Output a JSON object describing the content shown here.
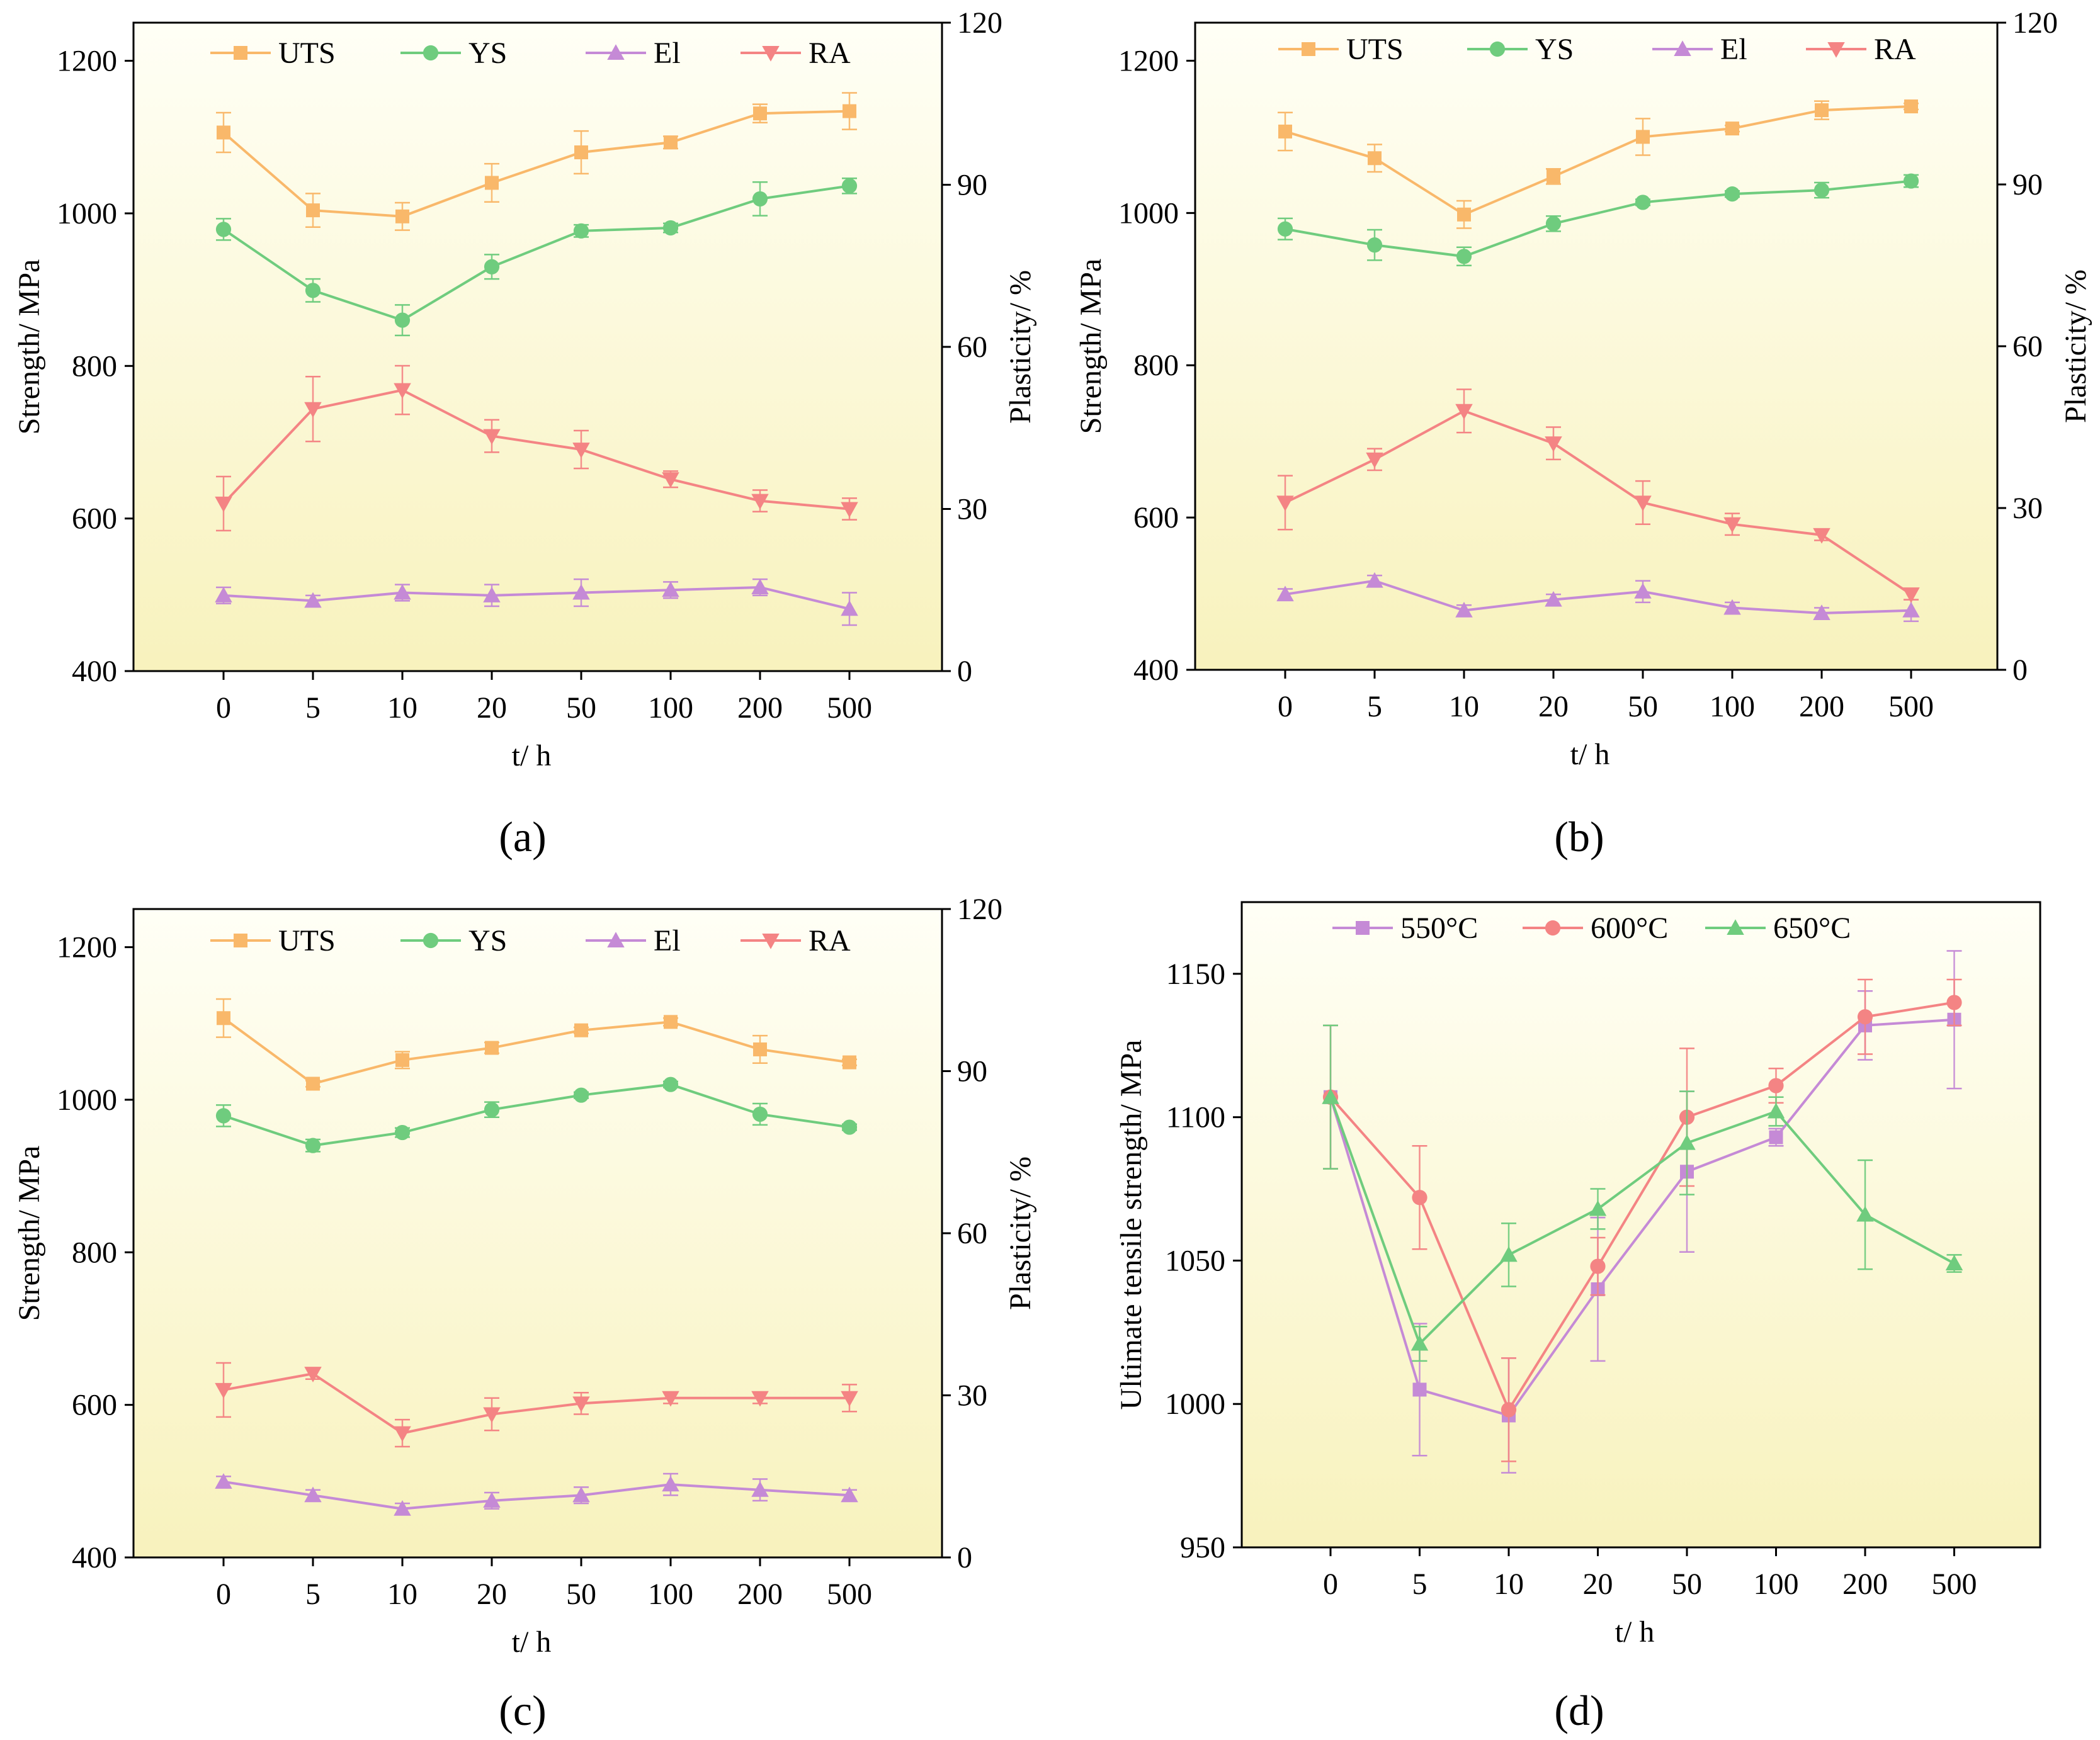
{
  "chart_data": [
    {
      "type": "line",
      "panel_label": "(a)",
      "x_categories": [
        "0",
        "5",
        "10",
        "20",
        "50",
        "100",
        "200",
        "500"
      ],
      "xlabel": "t/ h",
      "ylabel_left": "Strength/ MPa",
      "ylabel_right": "Plasticity/ %",
      "ylim_left": [
        400,
        1250
      ],
      "yticks_left": [
        "400",
        "600",
        "800",
        "1000",
        "1200"
      ],
      "ylim_right": [
        0,
        120
      ],
      "yticks_right": [
        "0",
        "30",
        "60",
        "90",
        "120"
      ],
      "legend_position": "top",
      "series": [
        {
          "name": "UTS",
          "axis": "left",
          "marker": "square",
          "color": "#f9b86a",
          "values": [
            1106,
            1004,
            996,
            1040,
            1080,
            1093,
            1131,
            1134
          ],
          "errors": [
            26,
            22,
            18,
            25,
            28,
            8,
            12,
            24
          ]
        },
        {
          "name": "YS",
          "axis": "left",
          "marker": "circle",
          "color": "#6fcc7e",
          "values": [
            979,
            899,
            860,
            930,
            977,
            981,
            1019,
            1036
          ],
          "errors": [
            14,
            15,
            20,
            16,
            8,
            6,
            22,
            10
          ]
        },
        {
          "name": "El",
          "axis": "right",
          "marker": "triangle-up",
          "color": "#c58ad6",
          "values": [
            14,
            13,
            14.5,
            14,
            14.5,
            15,
            15.5,
            11.5
          ],
          "errors": [
            1.5,
            1,
            1.5,
            2,
            2.5,
            1.5,
            1.5,
            3
          ]
        },
        {
          "name": "RA",
          "axis": "right",
          "marker": "triangle-down",
          "color": "#f48484",
          "values": [
            31,
            48.5,
            52,
            43.5,
            41,
            35.5,
            31.5,
            30
          ],
          "errors": [
            5,
            6,
            4.5,
            3,
            3.5,
            1.5,
            2,
            2
          ]
        }
      ]
    },
    {
      "type": "line",
      "panel_label": "(b)",
      "x_categories": [
        "0",
        "5",
        "10",
        "20",
        "50",
        "100",
        "200",
        "500"
      ],
      "xlabel": "t/ h",
      "ylabel_left": "Strength/ MPa",
      "ylabel_right": "Plasticity/ %",
      "ylim_left": [
        400,
        1250
      ],
      "yticks_left": [
        "400",
        "600",
        "800",
        "1000",
        "1200"
      ],
      "ylim_right": [
        0,
        120
      ],
      "yticks_right": [
        "0",
        "30",
        "60",
        "90",
        "120"
      ],
      "legend_position": "top",
      "series": [
        {
          "name": "UTS",
          "axis": "left",
          "marker": "square",
          "color": "#f9b86a",
          "values": [
            1107,
            1072,
            998,
            1048,
            1100,
            1111,
            1135,
            1140
          ],
          "errors": [
            25,
            18,
            18,
            10,
            24,
            4,
            12,
            4
          ]
        },
        {
          "name": "YS",
          "axis": "left",
          "marker": "circle",
          "color": "#6fcc7e",
          "values": [
            979,
            958,
            943,
            986,
            1014,
            1025,
            1030,
            1042
          ],
          "errors": [
            14,
            20,
            12,
            10,
            4,
            4,
            10,
            8
          ]
        },
        {
          "name": "El",
          "axis": "right",
          "marker": "triangle-up",
          "color": "#c58ad6",
          "values": [
            14,
            16.5,
            11,
            13,
            14.5,
            11.5,
            10.5,
            11
          ],
          "errors": [
            1,
            1,
            1,
            1,
            2,
            1,
            1,
            2
          ]
        },
        {
          "name": "RA",
          "axis": "right",
          "marker": "triangle-down",
          "color": "#f48484",
          "values": [
            31,
            39,
            48,
            42,
            31,
            27,
            25,
            14
          ],
          "errors": [
            5,
            2,
            4,
            3,
            4,
            2,
            1,
            1
          ]
        }
      ]
    },
    {
      "type": "line",
      "panel_label": "(c)",
      "x_categories": [
        "0",
        "5",
        "10",
        "20",
        "50",
        "100",
        "200",
        "500"
      ],
      "xlabel": "t/ h",
      "ylabel_left": "Strength/ MPa",
      "ylabel_right": "Plasticity/ %",
      "ylim_left": [
        400,
        1250
      ],
      "yticks_left": [
        "400",
        "600",
        "800",
        "1000",
        "1200"
      ],
      "ylim_right": [
        0,
        120
      ],
      "yticks_right": [
        "0",
        "30",
        "60",
        "90",
        "120"
      ],
      "legend_position": "top",
      "series": [
        {
          "name": "UTS",
          "axis": "left",
          "marker": "square",
          "color": "#f9b86a",
          "values": [
            1107,
            1021,
            1052,
            1068,
            1091,
            1102,
            1066,
            1049
          ],
          "errors": [
            25,
            4,
            11,
            7,
            4,
            5,
            18,
            4
          ]
        },
        {
          "name": "YS",
          "axis": "left",
          "marker": "circle",
          "color": "#6fcc7e",
          "values": [
            979,
            940,
            957,
            987,
            1006,
            1020,
            981,
            964
          ],
          "errors": [
            14,
            8,
            6,
            10,
            4,
            4,
            14,
            4
          ]
        },
        {
          "name": "El",
          "axis": "right",
          "marker": "triangle-up",
          "color": "#c58ad6",
          "values": [
            14,
            11.5,
            9,
            10.5,
            11.5,
            13.5,
            12.5,
            11.5
          ],
          "errors": [
            1,
            1,
            1,
            1.5,
            1.5,
            2,
            2,
            1
          ]
        },
        {
          "name": "RA",
          "axis": "right",
          "marker": "triangle-down",
          "color": "#f48484",
          "values": [
            31,
            34,
            23,
            26.5,
            28.5,
            29.5,
            29.5,
            29.5
          ],
          "errors": [
            5,
            1,
            2.5,
            3,
            2,
            1,
            1,
            2.5
          ]
        }
      ]
    },
    {
      "type": "line",
      "panel_label": "(d)",
      "x_categories": [
        "0",
        "5",
        "10",
        "20",
        "50",
        "100",
        "200",
        "500"
      ],
      "xlabel": "t/ h",
      "ylabel": "Ultimate tensile strength/ MPa",
      "ylim": [
        950,
        1175
      ],
      "yticks": [
        "950",
        "1000",
        "1050",
        "1100",
        "1150"
      ],
      "legend_position": "top",
      "series": [
        {
          "name": "550°C",
          "marker": "square",
          "color": "#c58ad6",
          "values": [
            1107,
            1005,
            996,
            1040,
            1081,
            1093,
            1132,
            1134
          ],
          "errors": [
            25,
            23,
            20,
            25,
            28,
            3,
            12,
            24
          ]
        },
        {
          "name": "600°C",
          "marker": "circle",
          "color": "#f48484",
          "values": [
            1107,
            1072,
            998,
            1048,
            1100,
            1111,
            1135,
            1140
          ],
          "errors": [
            25,
            18,
            18,
            10,
            24,
            6,
            13,
            8
          ]
        },
        {
          "name": "650°C",
          "marker": "triangle-up",
          "color": "#6fcc7e",
          "values": [
            1107,
            1021,
            1052,
            1068,
            1091,
            1102,
            1066,
            1049
          ],
          "errors": [
            25,
            6,
            11,
            7,
            18,
            5,
            19,
            3
          ]
        }
      ]
    }
  ]
}
